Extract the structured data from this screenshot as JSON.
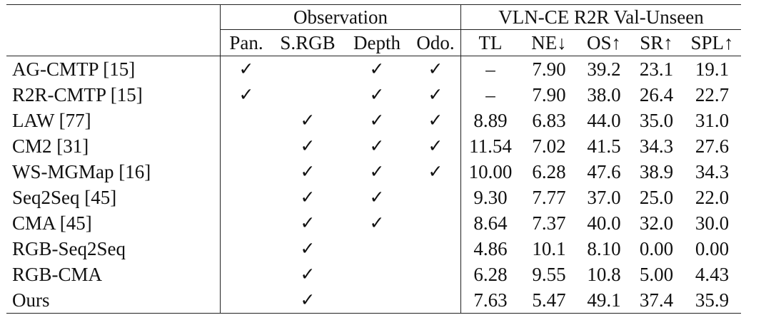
{
  "header": {
    "observation_label": "Observation",
    "dataset_label": "VLN-CE R2R Val-Unseen",
    "columns": [
      "Pan.",
      "S.RGB",
      "Depth",
      "Odo.",
      "TL",
      "NE↓",
      "OS↑",
      "SR↑",
      "SPL↑"
    ]
  },
  "check_symbol": "✓",
  "rows": [
    {
      "method": "AG-CMTP [15]",
      "pan": "✓",
      "srgb": "",
      "depth": "✓",
      "odo": "✓",
      "tl": "–",
      "ne": "7.90",
      "os": "39.2",
      "sr": "23.1",
      "spl": "19.1"
    },
    {
      "method": "R2R-CMTP [15]",
      "pan": "✓",
      "srgb": "",
      "depth": "✓",
      "odo": "✓",
      "tl": "–",
      "ne": "7.90",
      "os": "38.0",
      "sr": "26.4",
      "spl": "22.7"
    },
    {
      "method": "LAW [77]",
      "pan": "",
      "srgb": "✓",
      "depth": "✓",
      "odo": "✓",
      "tl": "8.89",
      "ne": "6.83",
      "os": "44.0",
      "sr": "35.0",
      "spl": "31.0"
    },
    {
      "method": "CM2 [31]",
      "pan": "",
      "srgb": "✓",
      "depth": "✓",
      "odo": "✓",
      "tl": "11.54",
      "ne": "7.02",
      "os": "41.5",
      "sr": "34.3",
      "spl": "27.6"
    },
    {
      "method": "WS-MGMap [16]",
      "pan": "",
      "srgb": "✓",
      "depth": "✓",
      "odo": "✓",
      "tl": "10.00",
      "ne": "6.28",
      "os": "47.6",
      "sr": "38.9",
      "spl": "34.3"
    },
    {
      "method": "Seq2Seq [45]",
      "pan": "",
      "srgb": "✓",
      "depth": "✓",
      "odo": "",
      "tl": "9.30",
      "ne": "7.77",
      "os": "37.0",
      "sr": "25.0",
      "spl": "22.0"
    },
    {
      "method": "CMA [45]",
      "pan": "",
      "srgb": "✓",
      "depth": "✓",
      "odo": "",
      "tl": "8.64",
      "ne": "7.37",
      "os": "40.0",
      "sr": "32.0",
      "spl": "30.0"
    },
    {
      "method": "RGB-Seq2Seq",
      "pan": "",
      "srgb": "✓",
      "depth": "",
      "odo": "",
      "tl": "4.86",
      "ne": "10.1",
      "os": "8.10",
      "sr": "0.00",
      "spl": "0.00"
    },
    {
      "method": "RGB-CMA",
      "pan": "",
      "srgb": "✓",
      "depth": "",
      "odo": "",
      "tl": "6.28",
      "ne": "9.55",
      "os": "10.8",
      "sr": "5.00",
      "spl": "4.43"
    },
    {
      "method": "Ours",
      "pan": "",
      "srgb": "✓",
      "depth": "",
      "odo": "",
      "tl": "7.63",
      "ne": "5.47",
      "os": "49.1",
      "sr": "37.4",
      "spl": "35.9"
    }
  ]
}
